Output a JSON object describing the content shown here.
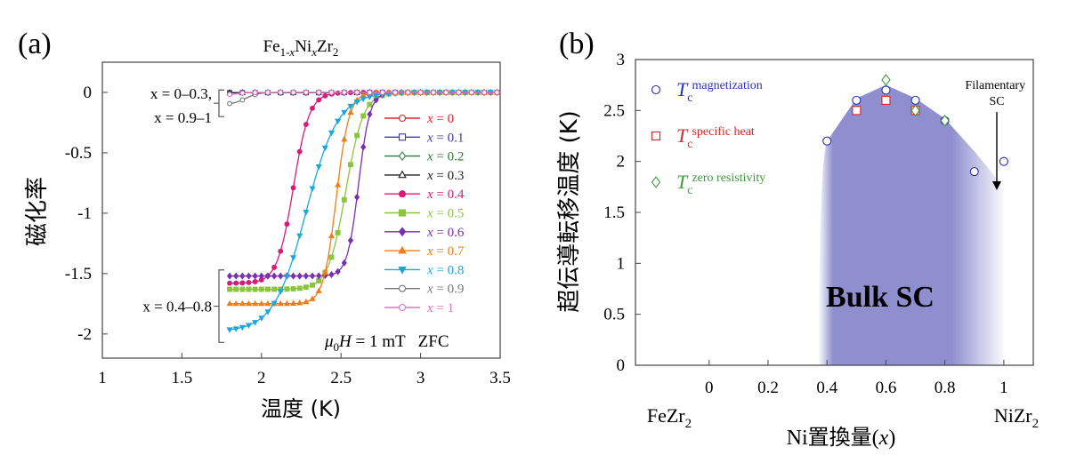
{
  "chart_data": [
    {
      "type": "line",
      "panel_label": "(a)",
      "title_parts": {
        "base": "Fe",
        "sub1": "1-",
        "x1": "x",
        "mid": "Ni",
        "sub2": "x",
        "mid2": "Zr",
        "sub3": "2"
      },
      "xlabel": "温度 (K)",
      "ylabel": "磁化率",
      "xlim": [
        1,
        3.5
      ],
      "ylim": [
        -2.2,
        0.25
      ],
      "xticks": [
        "1",
        "1.5",
        "2",
        "2.5",
        "3",
        "3.5"
      ],
      "xtick_values": [
        1,
        1.5,
        2,
        2.5,
        3,
        3.5
      ],
      "yticks": [
        "0",
        "-0.5",
        "-1",
        "-1.5",
        "-2"
      ],
      "ytick_values": [
        0,
        -0.5,
        -1,
        -1.5,
        -2
      ],
      "annotation_field": {
        "mu": "μ",
        "zero": "0",
        "h": "H",
        "eq": " = 1 mT",
        "zfc": "ZFC"
      },
      "brackets": [
        {
          "line1": "x = 0–0.3,",
          "line2": "x = 0.9–1",
          "y_from": 0.02,
          "y_to": -0.2
        },
        {
          "line1": "x = 0.4–0.8",
          "line2": "",
          "y_from": -1.47,
          "y_to": -2.07
        }
      ],
      "series": [
        {
          "name": "x = 0",
          "value": "0",
          "color": "#d6262a",
          "marker": "circle-open",
          "tc": 2.6,
          "width": 0.05,
          "min": -0.003
        },
        {
          "name": "x = 0.1",
          "value": "0.1",
          "color": "#3a3aa8",
          "marker": "square-open",
          "tc": 2.6,
          "width": 0.05,
          "min": -0.002
        },
        {
          "name": "x = 0.2",
          "value": "0.2",
          "color": "#2f7a3a",
          "marker": "diamond-open",
          "tc": 2.6,
          "width": 0.05,
          "min": -0.002
        },
        {
          "name": "x = 0.3",
          "value": "0.3",
          "color": "#222222",
          "marker": "triangle-open",
          "tc": 2.6,
          "width": 0.05,
          "min": -0.002
        },
        {
          "name": "x = 0.4",
          "value": "0.4",
          "color": "#d81b7a",
          "marker": "circle",
          "tc": 2.2,
          "width": 0.05,
          "min": -1.58
        },
        {
          "name": "x = 0.5",
          "value": "0.5",
          "color": "#8bc53f",
          "marker": "square",
          "tc": 2.53,
          "width": 0.055,
          "min": -1.63
        },
        {
          "name": "x = 0.6",
          "value": "0.6",
          "color": "#7a2fb0",
          "marker": "diamond",
          "tc": 2.61,
          "width": 0.035,
          "min": -1.52
        },
        {
          "name": "x = 0.7",
          "value": "0.7",
          "color": "#f07c1a",
          "marker": "triangle",
          "tc": 2.47,
          "width": 0.04,
          "min": -1.75
        },
        {
          "name": "x = 0.8",
          "value": "0.8",
          "color": "#1aa7e0",
          "marker": "triangle-down",
          "tc": 2.28,
          "width": 0.1,
          "min": -1.98
        },
        {
          "name": "x = 0.9",
          "value": "0.9",
          "color": "#777777",
          "marker": "circle-open",
          "tc": 1.9,
          "width": 0.04,
          "min": -0.1
        },
        {
          "name": "x = 1",
          "value": "1",
          "color": "#e070c8",
          "marker": "circle-open",
          "tc": 1.85,
          "width": 0.03,
          "min": -0.02
        }
      ]
    },
    {
      "type": "scatter",
      "panel_label": "(b)",
      "xlabel_prefix": "Ni置換量(",
      "xlabel_var": "x",
      "xlabel_suffix": ")",
      "ylabel": "超伝導転移温度 (K)",
      "xlim": [
        -0.25,
        1.1
      ],
      "ylim": [
        0,
        3
      ],
      "xticks": [
        "0",
        "0.2",
        "0.4",
        "0.6",
        "0.8",
        "1"
      ],
      "xtick_values": [
        0,
        0.2,
        0.4,
        0.6,
        0.8,
        1
      ],
      "yticks": [
        "0",
        "0.5",
        "1",
        "1.5",
        "2",
        "2.5",
        "3"
      ],
      "ytick_values": [
        0,
        0.5,
        1,
        1.5,
        2,
        2.5,
        3
      ],
      "end_labels": {
        "left": {
          "base": "FeZr",
          "sub": "2"
        },
        "right": {
          "base": "NiZr",
          "sub": "2"
        }
      },
      "region_label": "Bulk SC",
      "filamentary_label": [
        "Filamentary",
        "SC"
      ],
      "shaded_color": "#8f8fd0",
      "dome_boundary": {
        "x": [
          0.37,
          0.4,
          0.5,
          0.6,
          0.7,
          0.8,
          0.9,
          1.0
        ],
        "y": [
          0,
          2.2,
          2.62,
          2.75,
          2.62,
          2.42,
          2.1,
          1.75
        ]
      },
      "series": [
        {
          "name": "magnetization",
          "label_main": "T",
          "label_sub": "c",
          "label_sup": "magnetization",
          "color": "#2b2fb6",
          "marker": "circle-open",
          "x": [
            0.4,
            0.5,
            0.6,
            0.7,
            0.8,
            0.9,
            1.0
          ],
          "y": [
            2.2,
            2.6,
            2.7,
            2.6,
            2.4,
            1.9,
            2.0
          ]
        },
        {
          "name": "specific heat",
          "label_main": "T",
          "label_sub": "c",
          "label_sup": "specific heat",
          "color": "#d22a2a",
          "marker": "square-open",
          "x": [
            0.5,
            0.6,
            0.7
          ],
          "y": [
            2.5,
            2.6,
            2.5
          ]
        },
        {
          "name": "zero resistivity",
          "label_main": "T",
          "label_sub": "c",
          "label_sup": "zero resistivity",
          "color": "#3b9a3b",
          "marker": "diamond-open",
          "x": [
            0.6,
            0.7,
            0.8
          ],
          "y": [
            2.8,
            2.5,
            2.4
          ]
        }
      ]
    }
  ]
}
